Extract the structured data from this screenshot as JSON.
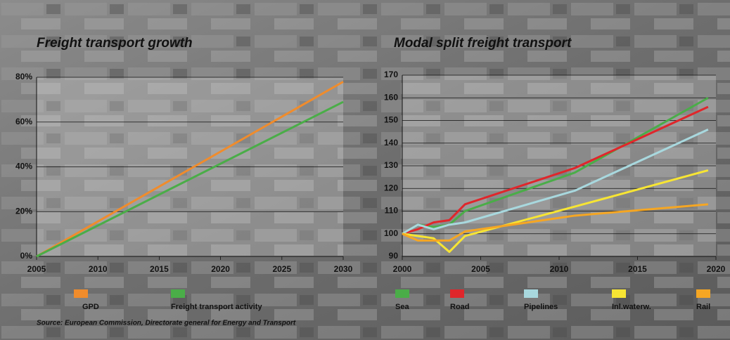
{
  "chart_data": [
    {
      "type": "line",
      "title": "Freight transport growth",
      "x": [
        2005,
        2030
      ],
      "series": [
        {
          "name": "GPD",
          "color": "#f08c2c",
          "values": [
            0,
            78
          ]
        },
        {
          "name": "Freight transport activity",
          "color": "#4aad48",
          "values": [
            0,
            69
          ]
        }
      ],
      "xlim": [
        2005,
        2030
      ],
      "xticks": [
        2005,
        2010,
        2015,
        2020,
        2025,
        2030
      ],
      "ylim": [
        0,
        80
      ],
      "yticks": [
        {
          "value": 0,
          "label": "0%"
        },
        {
          "value": 20,
          "label": "20%"
        },
        {
          "value": 40,
          "label": "40%"
        },
        {
          "value": 60,
          "label": "60%"
        },
        {
          "value": 80,
          "label": "80%"
        }
      ],
      "grid": true
    },
    {
      "type": "line",
      "title": "Modal split freight transport",
      "x": [
        2000,
        2001,
        2002,
        2003,
        2004,
        2011,
        2019.5
      ],
      "series": [
        {
          "name": "Sea",
          "color": "#4aad48",
          "values": [
            100,
            104,
            103,
            104,
            110,
            127,
            160
          ]
        },
        {
          "name": "Road",
          "color": "#e0262b",
          "values": [
            100,
            102,
            105,
            106,
            113,
            129,
            156
          ]
        },
        {
          "name": "Pipelines",
          "color": "#a8d8de",
          "values": [
            100,
            104,
            102,
            104,
            105,
            119,
            146
          ]
        },
        {
          "name": "Inl.waterw.",
          "color": "#f7e533",
          "values": [
            100,
            99,
            98,
            92,
            99,
            112,
            128
          ]
        },
        {
          "name": "Rail",
          "color": "#f5a623",
          "values": [
            100,
            97,
            97,
            97,
            101,
            108,
            113
          ]
        }
      ],
      "xlim": [
        2000,
        2020
      ],
      "xticks": [
        2000,
        2005,
        2010,
        2015,
        2020
      ],
      "ylim": [
        90,
        170
      ],
      "yticks": [
        90,
        100,
        110,
        120,
        130,
        140,
        150,
        160,
        170
      ],
      "grid": true
    }
  ],
  "source": "Source: European Commission, Directorate general for Energy and Transport"
}
